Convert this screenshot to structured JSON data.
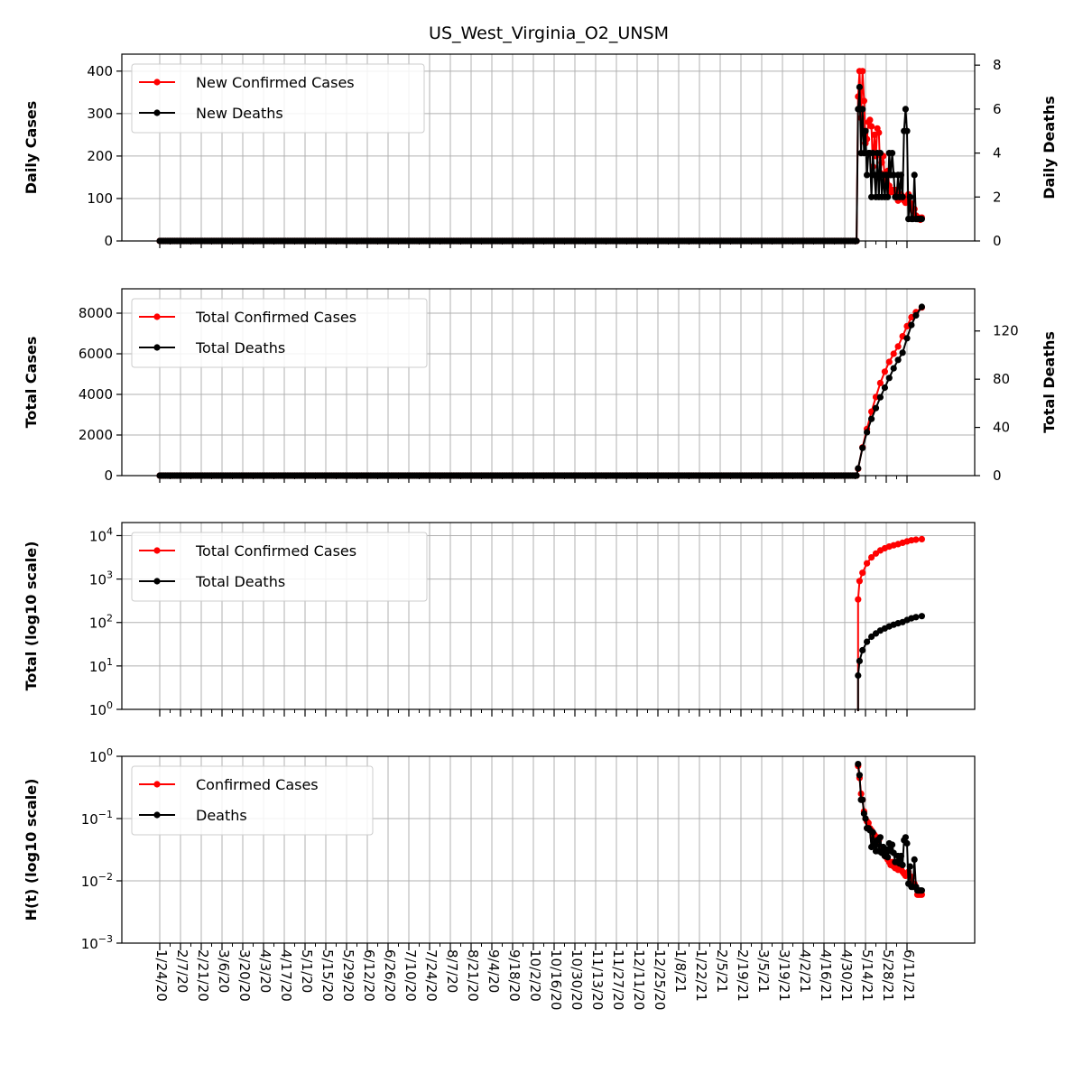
{
  "figure": {
    "title": "US_West_Virginia_O2_UNSM"
  },
  "colors": {
    "cases": "#ff0000",
    "deaths": "#000000",
    "grid": "#b0b0b0"
  },
  "dates": {
    "start": "1/24/20",
    "tick_labels": [
      "1/24/20",
      "2/7/20",
      "2/21/20",
      "3/6/20",
      "3/20/20",
      "4/3/20",
      "4/17/20",
      "5/1/20",
      "5/15/20",
      "5/29/20",
      "6/12/20",
      "6/26/20",
      "7/10/20",
      "7/24/20",
      "8/7/20",
      "8/21/20",
      "9/4/20",
      "9/18/20",
      "10/2/20",
      "10/16/20",
      "10/30/20",
      "11/13/20",
      "11/27/20",
      "12/11/20",
      "12/25/20",
      "1/8/21",
      "1/22/21",
      "2/5/21",
      "2/19/21",
      "3/5/21",
      "3/19/21",
      "4/2/21",
      "4/16/21",
      "4/30/21",
      "5/14/21",
      "5/28/21",
      "6/11/21"
    ]
  },
  "chart_data": [
    {
      "type": "line",
      "panel": "daily",
      "ylabel": "Daily Cases",
      "ylabel_right": "Daily Deaths",
      "ylim": [
        0,
        440
      ],
      "ylim_right": [
        0,
        8.5
      ],
      "yticks": [
        "0",
        "100",
        "200",
        "300",
        "400"
      ],
      "yticks_right": [
        "0",
        "2",
        "4",
        "6",
        "8"
      ],
      "grid": true,
      "legend_position": "top-left",
      "series": [
        {
          "name": "New Confirmed Cases",
          "axis": "left",
          "color": "#ff0000",
          "zero_through": "5/8/21",
          "x": [
            "5/9/21",
            "5/10/21",
            "5/11/21",
            "5/12/21",
            "5/13/21",
            "5/14/21",
            "5/15/21",
            "5/16/21",
            "5/17/21",
            "5/18/21",
            "5/19/21",
            "5/20/21",
            "5/21/21",
            "5/22/21",
            "5/23/21",
            "5/24/21",
            "5/25/21",
            "5/26/21",
            "5/27/21",
            "5/28/21",
            "5/29/21",
            "5/30/21",
            "5/31/21",
            "6/1/21",
            "6/2/21",
            "6/3/21",
            "6/4/21",
            "6/5/21",
            "6/6/21",
            "6/7/21",
            "6/8/21",
            "6/9/21",
            "6/10/21",
            "6/11/21",
            "6/12/21",
            "6/13/21",
            "6/14/21",
            "6/15/21",
            "6/16/21",
            "6/17/21",
            "6/18/21",
            "6/19/21",
            "6/20/21",
            "6/21/21"
          ],
          "y": [
            340,
            400,
            290,
            400,
            330,
            230,
            240,
            280,
            285,
            270,
            175,
            250,
            200,
            265,
            255,
            160,
            185,
            200,
            140,
            150,
            165,
            130,
            115,
            120,
            115,
            120,
            110,
            95,
            105,
            110,
            105,
            95,
            90,
            100,
            110,
            90,
            80,
            70,
            75,
            60,
            55,
            55,
            50,
            55
          ]
        },
        {
          "name": "New Deaths",
          "axis": "right",
          "color": "#000000",
          "zero_through": "5/8/21",
          "x": [
            "5/9/21",
            "5/10/21",
            "5/11/21",
            "5/12/21",
            "5/13/21",
            "5/14/21",
            "5/15/21",
            "5/16/21",
            "5/17/21",
            "5/18/21",
            "5/19/21",
            "5/20/21",
            "5/21/21",
            "5/22/21",
            "5/23/21",
            "5/24/21",
            "5/25/21",
            "5/26/21",
            "5/27/21",
            "5/28/21",
            "5/29/21",
            "5/30/21",
            "5/31/21",
            "6/1/21",
            "6/2/21",
            "6/3/21",
            "6/4/21",
            "6/5/21",
            "6/6/21",
            "6/7/21",
            "6/8/21",
            "6/9/21",
            "6/10/21",
            "6/11/21",
            "6/12/21",
            "6/13/21",
            "6/14/21",
            "6/15/21",
            "6/16/21",
            "6/17/21",
            "6/18/21",
            "6/19/21",
            "6/20/21",
            "6/21/21"
          ],
          "y": [
            6,
            7,
            4,
            6,
            4,
            5,
            3,
            4,
            4,
            2,
            4,
            3,
            2,
            4,
            2,
            4,
            2,
            3,
            2,
            3,
            2,
            4,
            3,
            4,
            3,
            2,
            2,
            3,
            2,
            3,
            2,
            5,
            6,
            5,
            1,
            2,
            1,
            1,
            3,
            1,
            1,
            1,
            1,
            1
          ]
        }
      ]
    },
    {
      "type": "line",
      "panel": "total",
      "ylabel": "Total Cases",
      "ylabel_right": "Total Deaths",
      "ylim": [
        0,
        9200
      ],
      "ylim_right": [
        0,
        155
      ],
      "yticks": [
        "0",
        "2000",
        "4000",
        "6000",
        "8000"
      ],
      "yticks_right": [
        "0",
        "40",
        "80",
        "120"
      ],
      "grid": true,
      "legend_position": "top-left",
      "series": [
        {
          "name": "Total Confirmed Cases",
          "axis": "left",
          "color": "#ff0000",
          "zero_through": "5/8/21",
          "x": [
            "5/9/21",
            "5/12/21",
            "5/15/21",
            "5/18/21",
            "5/21/21",
            "5/24/21",
            "5/27/21",
            "5/30/21",
            "6/2/21",
            "6/5/21",
            "6/8/21",
            "6/11/21",
            "6/14/21",
            "6/17/21",
            "6/21/21"
          ],
          "y": [
            340,
            1390,
            2300,
            3150,
            3870,
            4560,
            5120,
            5600,
            6000,
            6360,
            6860,
            7360,
            7800,
            8050,
            8280
          ]
        },
        {
          "name": "Total Deaths",
          "axis": "right",
          "color": "#000000",
          "zero_through": "5/8/21",
          "x": [
            "5/9/21",
            "5/12/21",
            "5/15/21",
            "5/18/21",
            "5/21/21",
            "5/24/21",
            "5/27/21",
            "5/30/21",
            "6/2/21",
            "6/5/21",
            "6/8/21",
            "6/11/21",
            "6/14/21",
            "6/17/21",
            "6/21/21"
          ],
          "y": [
            6,
            23,
            36,
            47,
            56,
            65,
            73,
            81,
            89,
            96,
            102,
            114,
            125,
            133,
            140
          ]
        }
      ]
    },
    {
      "type": "line",
      "panel": "log_total",
      "ylabel": "Total (log10 scale)",
      "yscale": "log",
      "ylim": [
        1,
        20000
      ],
      "yticks": [
        "10^0",
        "10^1",
        "10^2",
        "10^3",
        "10^4"
      ],
      "grid": true,
      "legend_position": "top-left",
      "series": [
        {
          "name": "Total Confirmed Cases",
          "color": "#ff0000",
          "x": [
            "5/9/21",
            "5/10/21",
            "5/12/21",
            "5/15/21",
            "5/18/21",
            "5/21/21",
            "5/24/21",
            "5/27/21",
            "5/30/21",
            "6/2/21",
            "6/5/21",
            "6/8/21",
            "6/11/21",
            "6/14/21",
            "6/17/21",
            "6/21/21"
          ],
          "y": [
            340,
            900,
            1390,
            2300,
            3150,
            3870,
            4560,
            5120,
            5600,
            6000,
            6360,
            6860,
            7360,
            7800,
            8050,
            8280
          ]
        },
        {
          "name": "Total Deaths",
          "color": "#000000",
          "x": [
            "5/9/21",
            "5/10/21",
            "5/12/21",
            "5/15/21",
            "5/18/21",
            "5/21/21",
            "5/24/21",
            "5/27/21",
            "5/30/21",
            "6/2/21",
            "6/5/21",
            "6/8/21",
            "6/11/21",
            "6/14/21",
            "6/17/21",
            "6/21/21"
          ],
          "y": [
            6,
            13,
            23,
            36,
            47,
            56,
            65,
            73,
            81,
            89,
            96,
            102,
            114,
            125,
            133,
            140
          ]
        }
      ]
    },
    {
      "type": "line",
      "panel": "hazard",
      "ylabel": "H(t) (log10 scale)",
      "yscale": "log",
      "ylim": [
        0.001,
        1
      ],
      "yticks": [
        "10^-3",
        "10^-2",
        "10^-1",
        "10^0"
      ],
      "grid": true,
      "legend_position": "top-left",
      "series": [
        {
          "name": "Confirmed Cases",
          "color": "#ff0000",
          "x": [
            "5/9/21",
            "5/10/21",
            "5/11/21",
            "5/12/21",
            "5/13/21",
            "5/14/21",
            "5/15/21",
            "5/16/21",
            "5/17/21",
            "5/18/21",
            "5/19/21",
            "5/20/21",
            "5/21/21",
            "5/22/21",
            "5/23/21",
            "5/24/21",
            "5/25/21",
            "5/26/21",
            "5/27/21",
            "5/28/21",
            "5/29/21",
            "5/30/21",
            "5/31/21",
            "6/1/21",
            "6/2/21",
            "6/3/21",
            "6/4/21",
            "6/5/21",
            "6/6/21",
            "6/7/21",
            "6/8/21",
            "6/9/21",
            "6/10/21",
            "6/11/21",
            "6/12/21",
            "6/13/21",
            "6/14/21",
            "6/15/21",
            "6/16/21",
            "6/17/21",
            "6/18/21",
            "6/19/21",
            "6/20/21",
            "6/21/21"
          ],
          "y": [
            0.7,
            0.45,
            0.25,
            0.2,
            0.13,
            0.1,
            0.09,
            0.085,
            0.07,
            0.065,
            0.05,
            0.055,
            0.04,
            0.05,
            0.045,
            0.03,
            0.032,
            0.033,
            0.025,
            0.024,
            0.022,
            0.02,
            0.018,
            0.02,
            0.017,
            0.016,
            0.018,
            0.015,
            0.016,
            0.016,
            0.014,
            0.013,
            0.012,
            0.013,
            0.014,
            0.012,
            0.011,
            0.009,
            0.009,
            0.008,
            0.006,
            0.006,
            0.006,
            0.006
          ]
        },
        {
          "name": "Deaths",
          "color": "#000000",
          "x": [
            "5/9/21",
            "5/10/21",
            "5/11/21",
            "5/12/21",
            "5/13/21",
            "5/14/21",
            "5/15/21",
            "5/16/21",
            "5/17/21",
            "5/18/21",
            "5/19/21",
            "5/20/21",
            "5/21/21",
            "5/22/21",
            "5/23/21",
            "5/24/21",
            "5/25/21",
            "5/26/21",
            "5/27/21",
            "5/28/21",
            "5/29/21",
            "5/30/21",
            "5/31/21",
            "6/1/21",
            "6/2/21",
            "6/3/21",
            "6/4/21",
            "6/5/21",
            "6/6/21",
            "6/7/21",
            "6/8/21",
            "6/9/21",
            "6/10/21",
            "6/11/21",
            "6/12/21",
            "6/13/21",
            "6/14/21",
            "6/15/21",
            "6/16/21",
            "6/17/21",
            "6/18/21",
            "6/19/21",
            "6/20/21",
            "6/21/21"
          ],
          "y": [
            0.75,
            0.5,
            0.2,
            0.2,
            0.12,
            0.1,
            0.07,
            0.07,
            0.065,
            0.035,
            0.06,
            0.04,
            0.03,
            0.045,
            0.03,
            0.05,
            0.028,
            0.035,
            0.025,
            0.032,
            0.024,
            0.04,
            0.03,
            0.038,
            0.028,
            0.02,
            0.02,
            0.025,
            0.019,
            0.025,
            0.018,
            0.045,
            0.05,
            0.04,
            0.009,
            0.017,
            0.008,
            0.008,
            0.022,
            0.008,
            0.007,
            0.007,
            0.007,
            0.007
          ]
        }
      ]
    }
  ]
}
